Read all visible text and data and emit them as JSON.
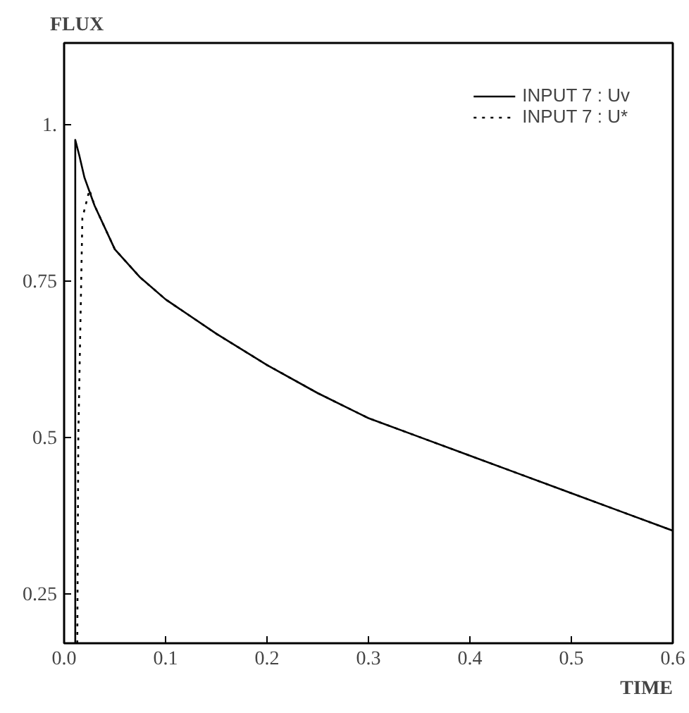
{
  "chart_data": {
    "type": "line",
    "xlabel": "TIME",
    "ylabel": "FLUX",
    "xlim": [
      0,
      0.6
    ],
    "ylim": [
      0.17,
      1.13
    ],
    "xticks": [
      {
        "value": 0,
        "label": "0.0"
      },
      0.1,
      0.2,
      0.3,
      0.4,
      0.5,
      0.6
    ],
    "yticks": [
      0.25,
      0.5,
      0.75,
      {
        "value": 1,
        "label": "1."
      }
    ],
    "grid": false,
    "legend": "top right",
    "series": [
      {
        "name": "INPUT 7 : Uv",
        "color": "#000000",
        "line_style": "solid",
        "x": [
          0.011,
          0.011,
          0.015,
          0.02,
          0.03,
          0.05,
          0.075,
          0.1,
          0.15,
          0.2,
          0.25,
          0.3,
          0.35,
          0.4,
          0.45,
          0.5,
          0.55,
          0.6
        ],
        "values": [
          0.17,
          0.975,
          0.95,
          0.915,
          0.87,
          0.8,
          0.755,
          0.72,
          0.665,
          0.615,
          0.57,
          0.53,
          0.5,
          0.47,
          0.44,
          0.41,
          0.38,
          0.35
        ]
      },
      {
        "name": "INPUT 7 : U*",
        "color": "#000000",
        "line_style": "dotted",
        "x": [
          0.013,
          0.014,
          0.018,
          0.025,
          0.03,
          0.05,
          0.075,
          0.1,
          0.15,
          0.2,
          0.25,
          0.3,
          0.35,
          0.4,
          0.45,
          0.5,
          0.55,
          0.6
        ],
        "values": [
          0.17,
          0.5,
          0.85,
          0.895,
          0.87,
          0.8,
          0.755,
          0.72,
          0.665,
          0.615,
          0.57,
          0.53,
          0.5,
          0.47,
          0.44,
          0.41,
          0.38,
          0.35
        ]
      }
    ]
  }
}
